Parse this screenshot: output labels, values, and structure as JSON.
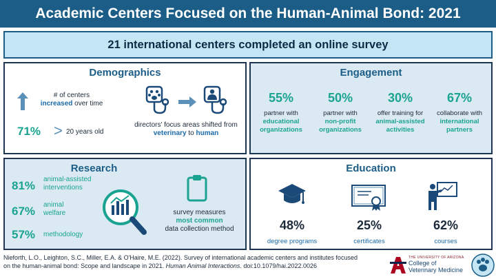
{
  "title": "Academic Centers Focused on the Human-Animal Bond: 2021",
  "subtitle": "21 international centers completed an online survey",
  "demographics": {
    "heading": "Demographics",
    "centers_line1": "# of centers",
    "centers_hl": "increased",
    "centers_rest": " over time",
    "age_pct": "71%",
    "age_symbol": ">",
    "age_text": "20 years old",
    "focus_line1": "directors' focus areas shifted from",
    "focus_vet": "veterinary",
    "focus_to": " to ",
    "focus_human": "human"
  },
  "engagement": {
    "heading": "Engagement",
    "items": [
      {
        "pct": "55%",
        "text": "partner with",
        "hl1": "educational",
        "hl2": "organizations"
      },
      {
        "pct": "50%",
        "text": "partner with",
        "hl1": "non-profit",
        "hl2": "organizations"
      },
      {
        "pct": "30%",
        "text": "offer training for",
        "hl1": "animal-assisted",
        "hl2": "activities"
      },
      {
        "pct": "67%",
        "text": "collaborate with",
        "hl1": "international",
        "hl2": "partners"
      }
    ]
  },
  "research": {
    "heading": "Research",
    "items": [
      {
        "pct": "81%",
        "line1": "animal-assisted",
        "line2": "interventions"
      },
      {
        "pct": "67%",
        "line1": "animal",
        "line2": "welfare"
      },
      {
        "pct": "57%",
        "line1": "methodology",
        "line2": ""
      }
    ],
    "survey_line1": "survey measures",
    "survey_hl": "most common",
    "survey_line3": "data collection method"
  },
  "education": {
    "heading": "Education",
    "items": [
      {
        "pct": "48%",
        "label": "degree programs",
        "icon": "graduation-cap-icon"
      },
      {
        "pct": "25%",
        "label": "certificates",
        "icon": "certificate-icon"
      },
      {
        "pct": "62%",
        "label": "courses",
        "icon": "teacher-board-icon"
      }
    ]
  },
  "footer": {
    "citation_plain": "Nieforth, L.O., Leighton, S.C., Miller, E.A. & O'Haire, M.E. (2022). Survey of international academic centers and institutes focused on the human-animal bond: Scope and landscape in 2021. ",
    "citation_journal": "Human Animal Interactions",
    "citation_end": ". doi:10.1079/hai.2022.0026",
    "ua_small": "THE UNIVERSITY OF ARIZONA",
    "ua_college1": "College of",
    "ua_college2": "Veterinary Medicine"
  },
  "colors": {
    "title_bg": "#1b5d86",
    "subtitle_bg": "#c4e6f4",
    "teal": "#1aa391",
    "blue": "#1b6aa8",
    "panel_tint": "#dbeaf2"
  }
}
